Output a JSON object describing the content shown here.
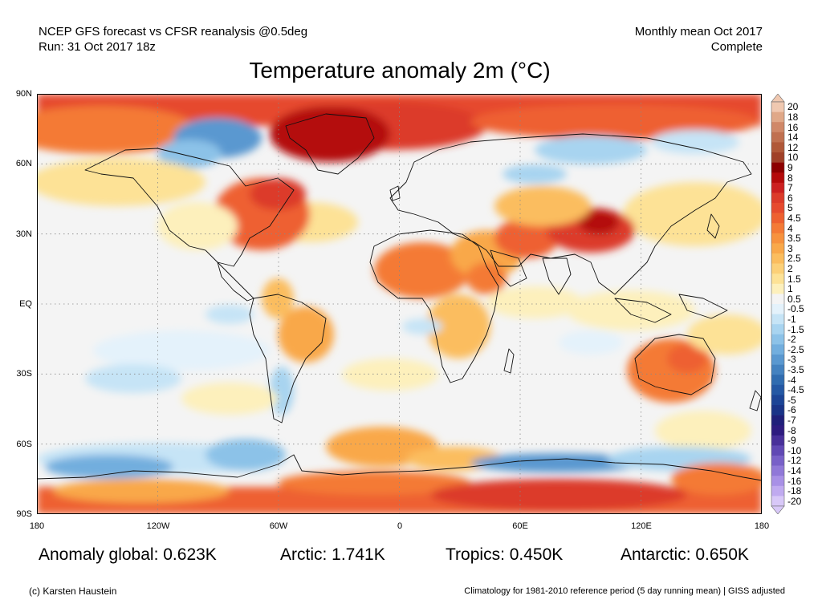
{
  "header": {
    "line1_left": "NCEP GFS forecast vs CFSR reanalysis @0.5deg",
    "line2_left": "Run: 31 Oct 2017 18z",
    "line1_right": "Monthly mean Oct 2017",
    "line2_right": "Complete"
  },
  "title": "Temperature anomaly 2m (°C)",
  "axes": {
    "lat_ticks": [
      "90N",
      "60N",
      "30N",
      "EQ",
      "30S",
      "60S",
      "90S"
    ],
    "lon_ticks": [
      "180",
      "120W",
      "60W",
      "0",
      "60E",
      "120E",
      "180"
    ]
  },
  "stats": {
    "global": "Anomaly global: 0.623K",
    "arctic": "Arctic: 1.741K",
    "tropics": "Tropics: 0.450K",
    "antarctic": "Antarctic: 0.650K"
  },
  "footer": {
    "credit": "(c) Karsten Haustein",
    "note": "Climatology for 1981-2010 reference period (5 day running mean) | GISS adjusted"
  },
  "colorbar": {
    "labels": [
      "20",
      "18",
      "16",
      "14",
      "12",
      "10",
      "9",
      "8",
      "7",
      "6",
      "5",
      "4.5",
      "4",
      "3.5",
      "3",
      "2.5",
      "2",
      "1.5",
      "1",
      "0.5",
      "-0.5",
      "-1",
      "-1.5",
      "-2",
      "-2.5",
      "-3",
      "-3.5",
      "-4",
      "-4.5",
      "-5",
      "-6",
      "-7",
      "-8",
      "-9",
      "-10",
      "-12",
      "-14",
      "-16",
      "-18",
      "-20"
    ],
    "colors": [
      "#f0c8b0",
      "#e0a888",
      "#d08868",
      "#c07050",
      "#b05838",
      "#a04028",
      "#8c0000",
      "#b40a0a",
      "#cc2020",
      "#dc3b2a",
      "#e64a2e",
      "#ee6030",
      "#f47a36",
      "#f7923e",
      "#f9a84a",
      "#fbbd5e",
      "#fcd078",
      "#fde296",
      "#fdf0bc",
      "#f4f4f4",
      "#e4f2fb",
      "#c6e4f6",
      "#a8d4f0",
      "#8cc2e8",
      "#72aede",
      "#5a98d0",
      "#4482c0",
      "#306cb0",
      "#2458a4",
      "#1c4496",
      "#1a3488",
      "#20207a",
      "#2e1c80",
      "#48309a",
      "#6048b4",
      "#7860c8",
      "#9078d8",
      "#a890e6",
      "#c0aaf0",
      "#d8c8f8"
    ]
  }
}
